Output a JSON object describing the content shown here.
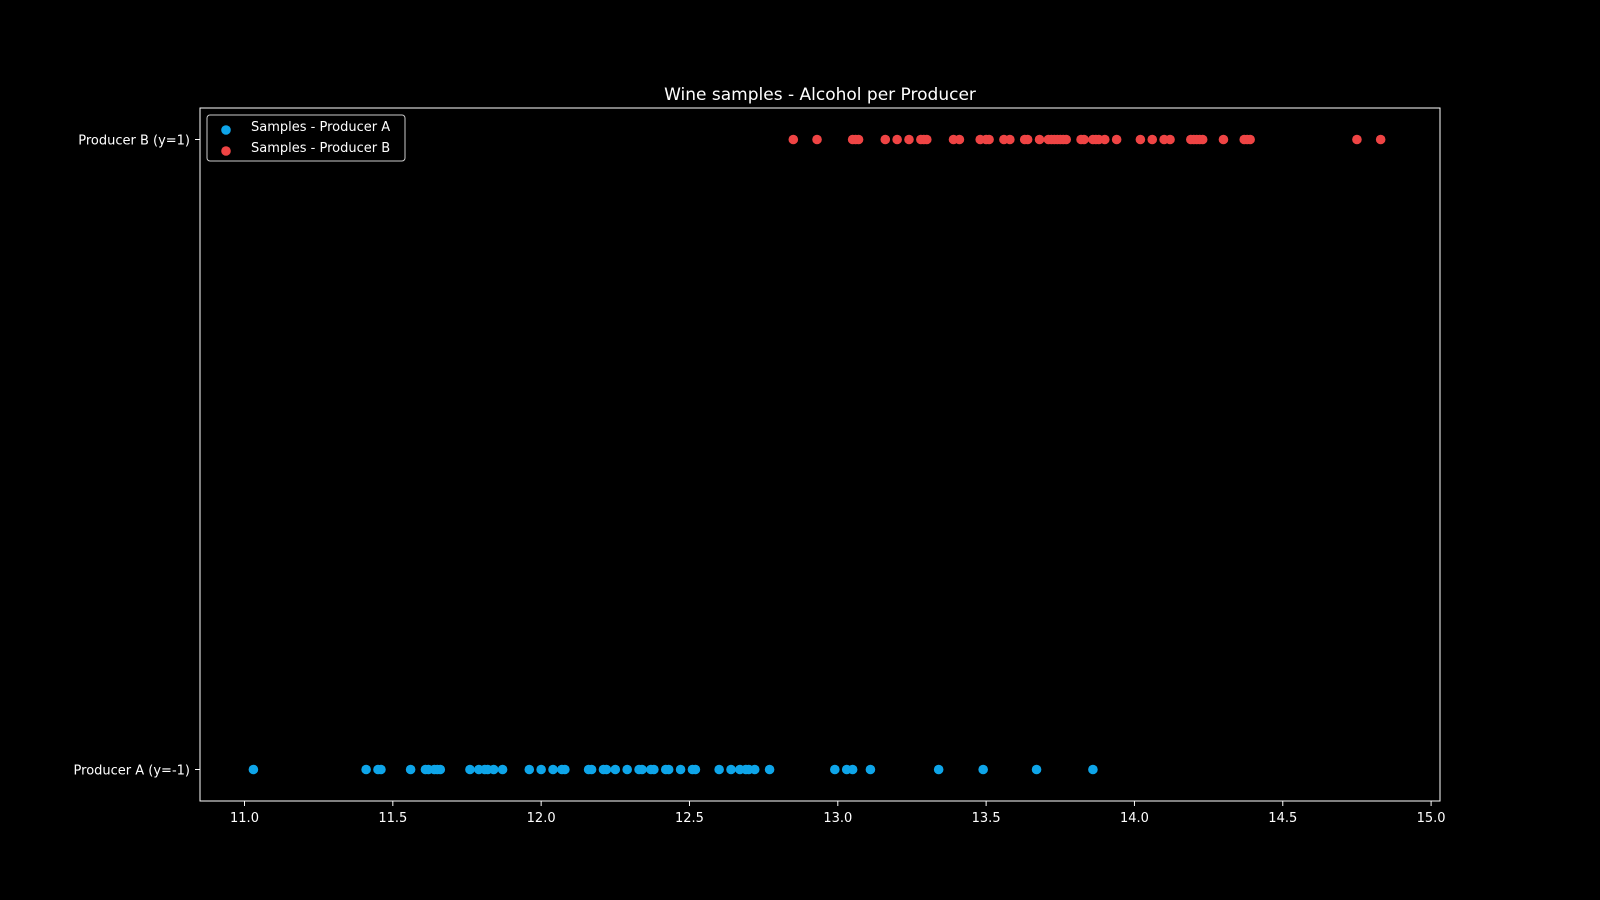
{
  "chart_data": {
    "type": "scatter",
    "title": "Wine samples - Alcohol per Producer",
    "xlabel": "",
    "ylabel": "",
    "xlim": [
      10.85,
      15.03
    ],
    "ylim": [
      -1.1,
      1.1
    ],
    "xticks": [
      "11.0",
      "11.5",
      "12.0",
      "12.5",
      "13.0",
      "13.5",
      "14.0",
      "14.5",
      "15.0"
    ],
    "yticks": [
      {
        "value": -1,
        "label": "Producer A (y=-1)"
      },
      {
        "value": 1,
        "label": "Producer B (y=1)"
      }
    ],
    "legend_position": "top-left",
    "grid": false,
    "series": [
      {
        "name": "Samples - Producer A",
        "color": "#0ea5e9",
        "y": -1,
        "x": [
          11.03,
          11.41,
          11.45,
          11.46,
          11.56,
          11.61,
          11.62,
          11.64,
          11.65,
          11.66,
          11.76,
          11.79,
          11.81,
          11.82,
          11.84,
          11.87,
          11.96,
          12.0,
          12.04,
          12.07,
          12.08,
          12.16,
          12.17,
          12.21,
          12.22,
          12.25,
          12.29,
          12.33,
          12.34,
          12.37,
          12.38,
          12.42,
          12.43,
          12.47,
          12.51,
          12.52,
          12.6,
          12.64,
          12.67,
          12.69,
          12.7,
          12.72,
          12.77,
          12.99,
          13.03,
          13.05,
          13.11,
          13.34,
          13.49,
          13.67,
          13.86
        ]
      },
      {
        "name": "Samples - Producer B",
        "color": "#ef4444",
        "y": 1,
        "x": [
          12.85,
          12.93,
          13.05,
          13.06,
          13.07,
          13.16,
          13.2,
          13.24,
          13.28,
          13.29,
          13.3,
          13.39,
          13.41,
          13.48,
          13.5,
          13.51,
          13.56,
          13.58,
          13.63,
          13.64,
          13.68,
          13.71,
          13.72,
          13.73,
          13.74,
          13.75,
          13.76,
          13.77,
          13.82,
          13.83,
          13.86,
          13.87,
          13.88,
          13.9,
          13.94,
          14.02,
          14.06,
          14.1,
          14.12,
          14.19,
          14.2,
          14.21,
          14.22,
          14.23,
          14.3,
          14.37,
          14.38,
          14.39,
          14.75,
          14.83
        ]
      }
    ]
  }
}
